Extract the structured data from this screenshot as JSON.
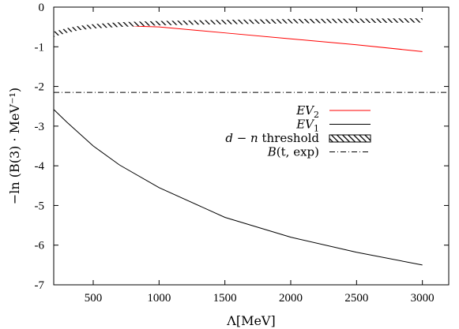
{
  "chart_data": {
    "type": "line",
    "xlabel": "Λ[MeV]",
    "ylabel": "−ln (B(3) · MeV⁻¹)",
    "xlim": [
      200,
      3200
    ],
    "ylim": [
      -7,
      0
    ],
    "x_ticks": [
      {
        "value": 500,
        "label": "500"
      },
      {
        "value": 1000,
        "label": "1000"
      },
      {
        "value": 1500,
        "label": "1500"
      },
      {
        "value": 2000,
        "label": "2000"
      },
      {
        "value": 2500,
        "label": "2500"
      },
      {
        "value": 3000,
        "label": "3000"
      }
    ],
    "y_ticks": [
      {
        "value": 0,
        "label": "0"
      },
      {
        "value": -1,
        "label": "-1"
      },
      {
        "value": -2,
        "label": "-2"
      },
      {
        "value": -3,
        "label": "-3"
      },
      {
        "value": -4,
        "label": "-4"
      },
      {
        "value": -5,
        "label": "-5"
      },
      {
        "value": -6,
        "label": "-6"
      },
      {
        "value": -7,
        "label": "-7"
      }
    ],
    "legend_position": "center-right",
    "series": [
      {
        "name": "EV2",
        "color": "#ff0000",
        "style": "solid",
        "x": [
          800,
          1000,
          1500,
          2000,
          2500,
          3000
        ],
        "y": [
          -0.48,
          -0.5,
          -0.65,
          -0.8,
          -0.95,
          -1.12
        ]
      },
      {
        "name": "EV1",
        "color": "#000000",
        "style": "solid",
        "x": [
          200,
          300,
          500,
          700,
          1000,
          1500,
          2000,
          2500,
          3000
        ],
        "y": [
          -2.58,
          -2.9,
          -3.5,
          -3.98,
          -4.55,
          -5.3,
          -5.8,
          -6.18,
          -6.5
        ]
      },
      {
        "name": "d − n threshold",
        "color": "#000000",
        "style": "hatched-band",
        "x": [
          200,
          300,
          400,
          500,
          700,
          1000,
          1500,
          2000,
          2500,
          3000
        ],
        "y_upper": [
          -0.62,
          -0.53,
          -0.47,
          -0.43,
          -0.38,
          -0.35,
          -0.32,
          -0.3,
          -0.29,
          -0.28
        ],
        "y_lower": [
          -0.75,
          -0.65,
          -0.58,
          -0.54,
          -0.5,
          -0.46,
          -0.43,
          -0.41,
          -0.4,
          -0.39
        ]
      },
      {
        "name": "B(t, exp)",
        "color": "#000000",
        "style": "dash-dot",
        "x": [
          200,
          3200
        ],
        "y": [
          -2.15,
          -2.15
        ]
      }
    ],
    "legend": [
      {
        "main": "EV",
        "sub": "2",
        "tail": "",
        "italic": true,
        "series": 0
      },
      {
        "main": "EV",
        "sub": "1",
        "tail": "",
        "italic": true,
        "series": 1
      },
      {
        "main": "d − n",
        "sub": "",
        "tail": " threshold",
        "italic": true,
        "series": 2
      },
      {
        "main": "B",
        "sub": "",
        "tail": "(t, exp)",
        "italic": true,
        "series": 3
      }
    ]
  }
}
